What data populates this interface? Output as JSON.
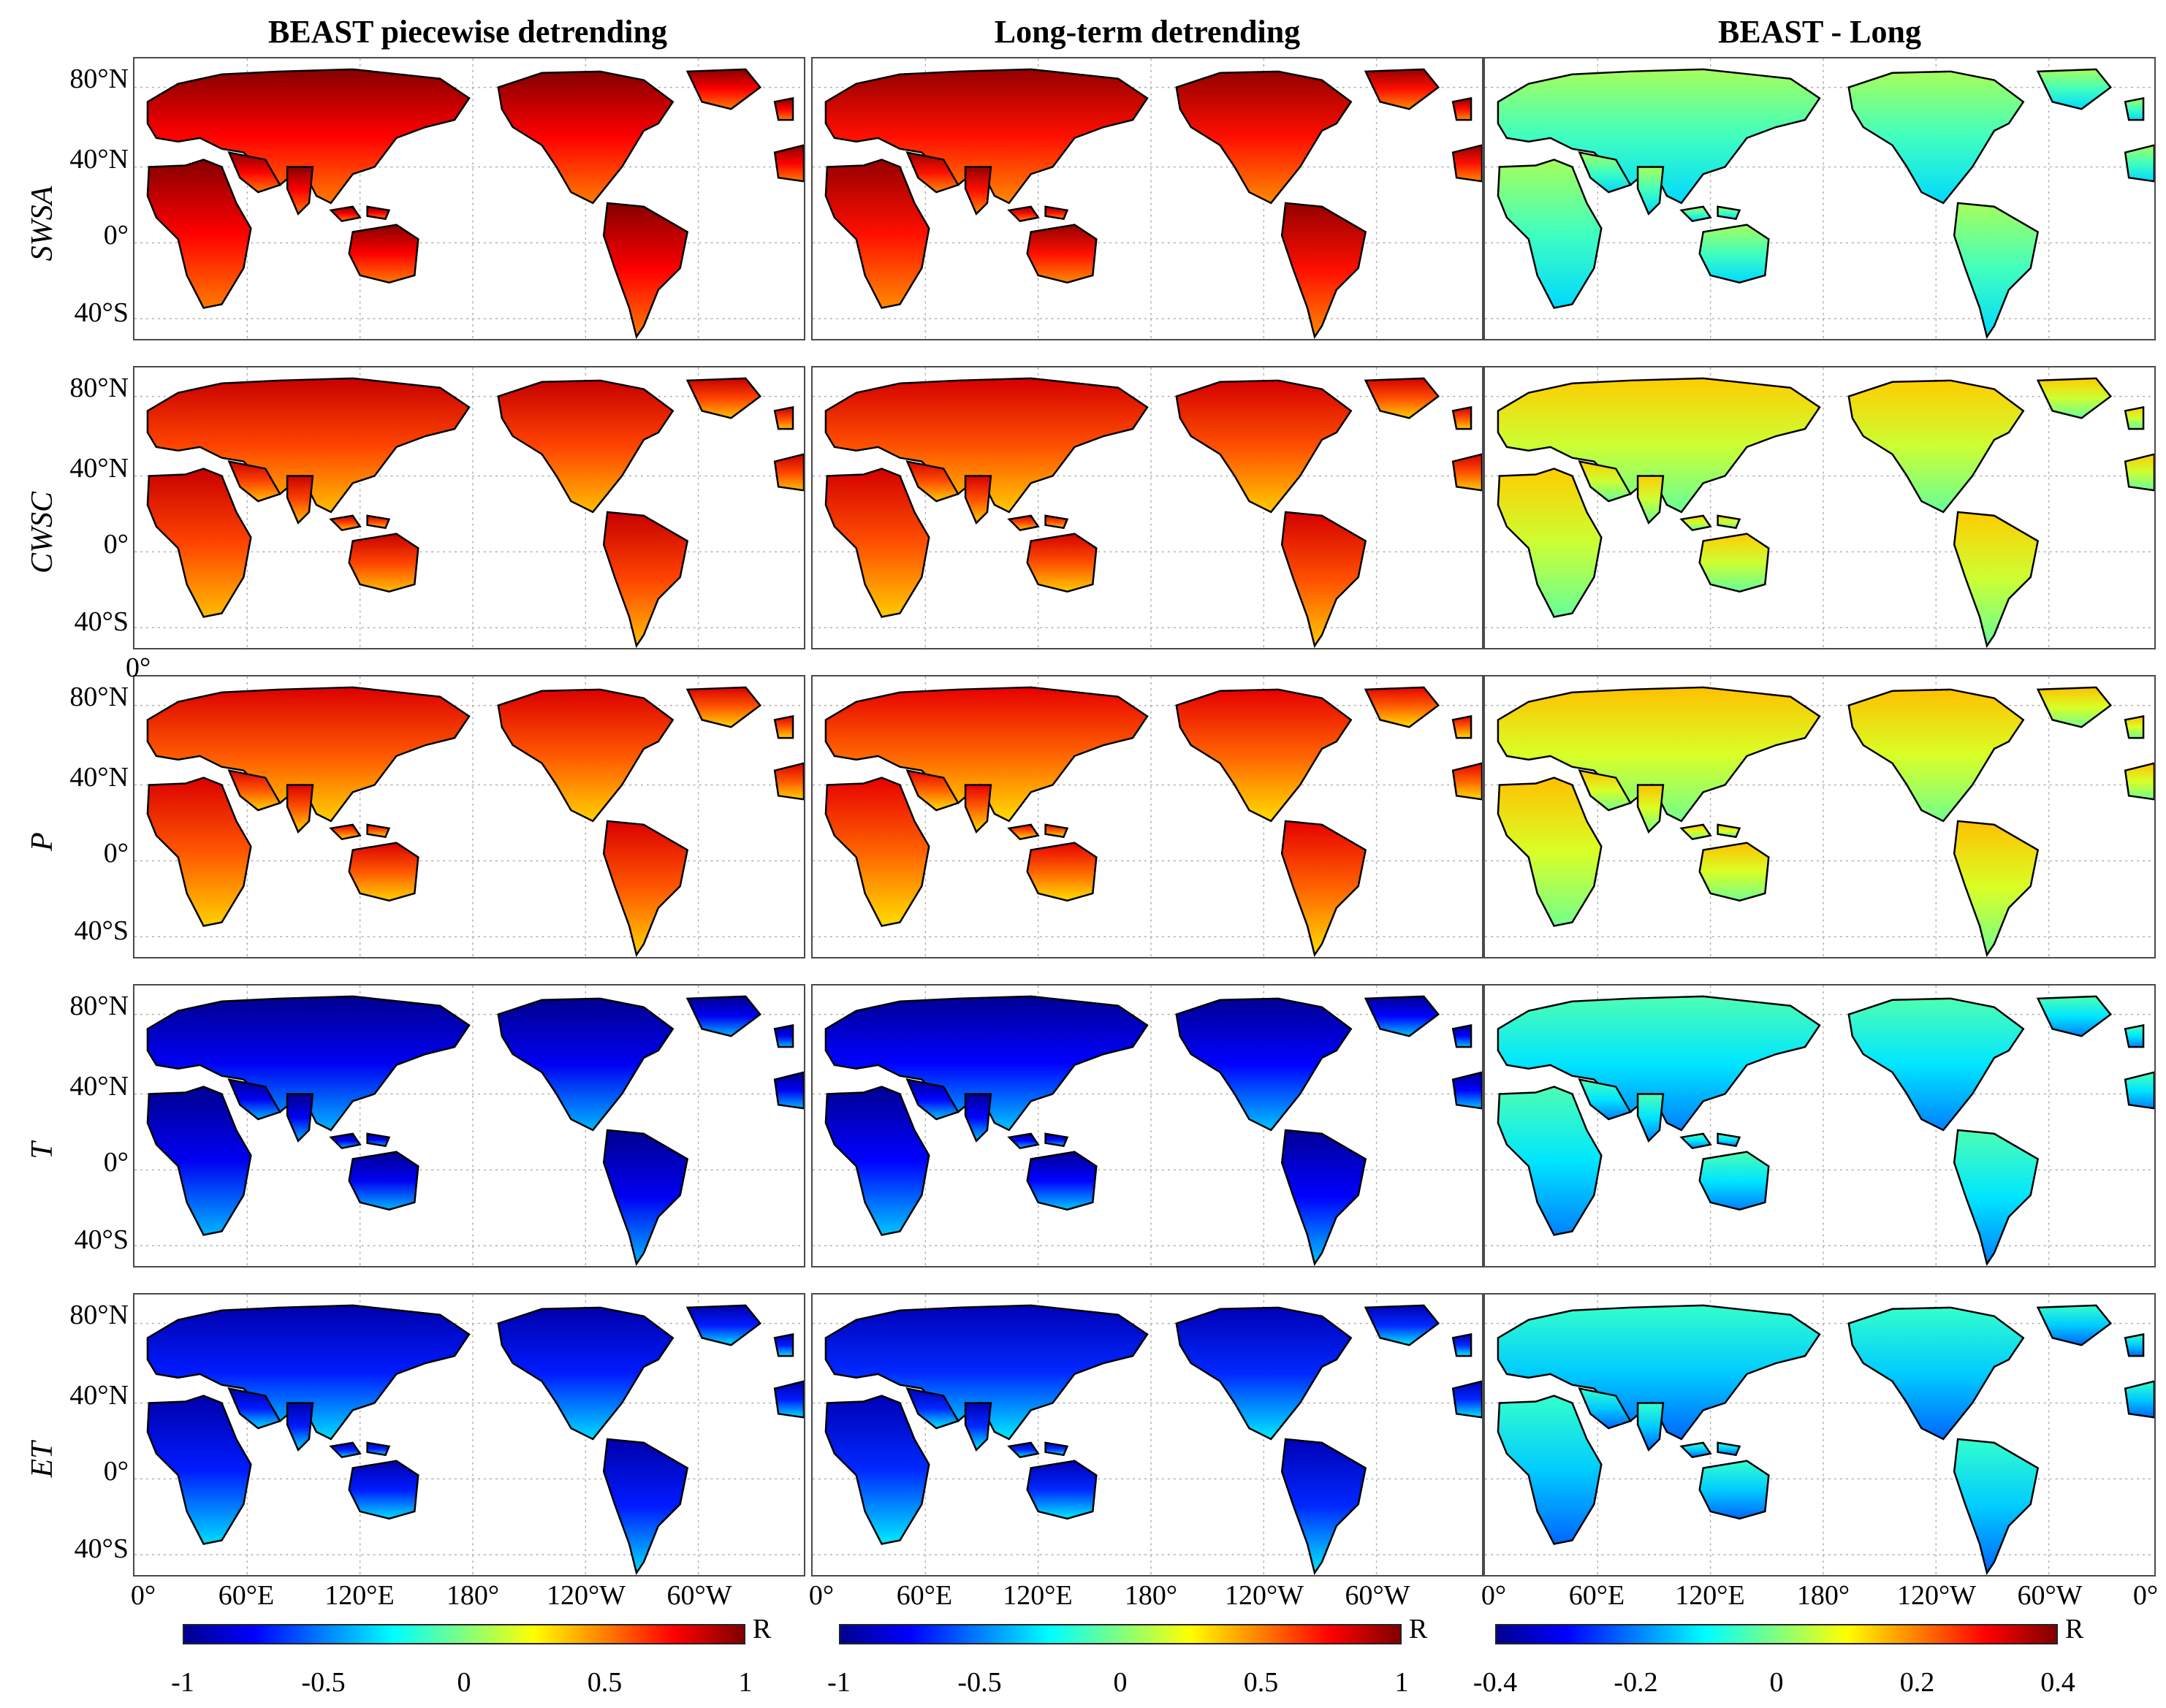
{
  "columns": [
    {
      "title": "BEAST piecewise detrending",
      "kind": "R"
    },
    {
      "title": "Long-term detrending",
      "kind": "R"
    },
    {
      "title": "BEAST - Long",
      "kind": "diff"
    }
  ],
  "rows": [
    {
      "label": "SWSA",
      "r_level": 0.75,
      "diff_level": -0.05
    },
    {
      "label": "CWSC",
      "r_level": 0.62,
      "diff_level": 0.06
    },
    {
      "label": "P",
      "r_level": 0.58,
      "diff_level": 0.07
    },
    {
      "label": "T",
      "r_level": -0.78,
      "diff_level": -0.12
    },
    {
      "label": "ET",
      "r_level": -0.7,
      "diff_level": -0.14
    }
  ],
  "latitude_ticks": [
    "80°N",
    "40°N",
    "0°",
    "40°S"
  ],
  "longitude_ticks": [
    "0°",
    "60°E",
    "120°E",
    "180°",
    "120°W",
    "60°W",
    "0°"
  ],
  "stray_label": "0°",
  "colorbars": [
    {
      "unit": "R",
      "ticks": [
        "-1",
        "-0.5",
        "0",
        "0.5",
        "1"
      ],
      "range": [
        -1,
        1
      ]
    },
    {
      "unit": "R",
      "ticks": [
        "-1",
        "-0.5",
        "0",
        "0.5",
        "1"
      ],
      "range": [
        -1,
        1
      ]
    },
    {
      "unit": "R",
      "ticks": [
        "-0.4",
        "-0.2",
        "0",
        "0.2",
        "0.4"
      ],
      "range": [
        -0.4,
        0.4
      ]
    }
  ],
  "colormap": [
    "#00008f",
    "#0000ff",
    "#0080ff",
    "#00ffff",
    "#80ff80",
    "#ffff00",
    "#ff8000",
    "#ff0000",
    "#800000"
  ]
}
